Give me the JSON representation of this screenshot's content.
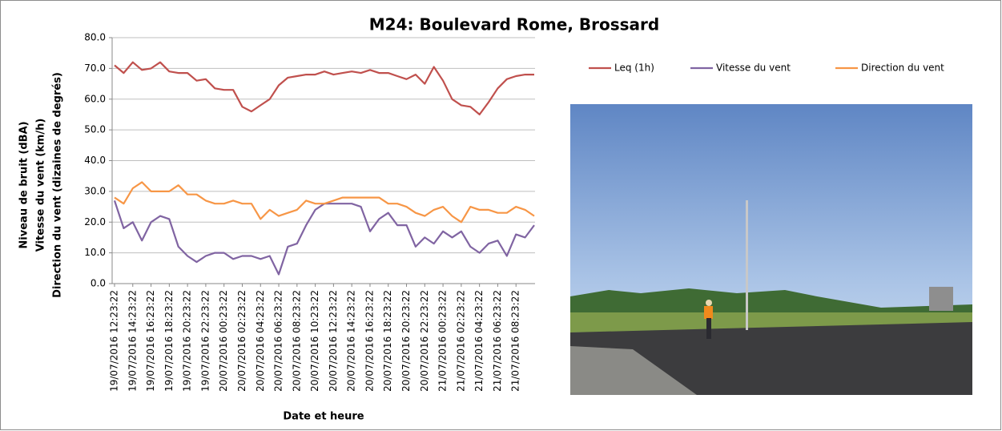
{
  "chart_data": {
    "type": "line",
    "title": "M24: Boulevard Rome, Brossard",
    "ylabel": [
      "Niveau de bruit (dBA)",
      "Vitesse du vent (km/h)",
      "Direction du vent (dizaines de degrés)"
    ],
    "xlabel": "Date et heure",
    "categories": [
      "19/07/2016 12:23:22",
      null,
      "19/07/2016 14:23:22",
      null,
      "19/07/2016 16:23:22",
      null,
      "19/07/2016 18:23:22",
      null,
      "19/07/2016 20:23:22",
      null,
      "19/07/2016 22:23:22",
      null,
      "20/07/2016 00:23:22",
      null,
      "20/07/2016 02:23:22",
      null,
      "20/07/2016 04:23:22",
      null,
      "20/07/2016 06:23:22",
      null,
      "20/07/2016 08:23:22",
      null,
      "20/07/2016 10:23:22",
      null,
      "20/07/2016 12:23:22",
      null,
      "20/07/2016 14:23:22",
      null,
      "20/07/2016 16:23:22",
      null,
      "20/07/2016 18:23:22",
      null,
      "20/07/2016 20:23:22",
      null,
      "20/07/2016 22:23:22",
      null,
      "21/07/2016 00:23:22",
      null,
      "21/07/2016 02:23:22",
      null,
      "21/07/2016 04:23:22",
      null,
      "21/07/2016 06:23:22",
      null,
      "21/07/2016 08:23:22",
      null,
      null
    ],
    "series": [
      {
        "name": "Leq (1h)",
        "color": "#c0504d",
        "values": [
          71,
          68.5,
          72,
          69.5,
          70,
          72,
          69,
          68.5,
          68.5,
          66,
          66.5,
          63.5,
          63,
          63,
          57.5,
          56,
          58,
          60,
          64.5,
          67,
          67.5,
          68,
          68,
          69,
          68,
          68.5,
          69,
          68.5,
          69.5,
          68.5,
          68.5,
          67.5,
          66.5,
          68,
          65,
          70.5,
          66,
          60,
          58,
          57.5,
          55,
          59,
          63.5,
          66.5,
          67.5,
          68,
          68
        ]
      },
      {
        "name": "Vitesse du vent",
        "color": "#8064a2",
        "values": [
          27,
          18,
          20,
          14,
          20,
          22,
          21,
          12,
          9,
          7,
          9,
          10,
          10,
          8,
          9,
          9,
          8,
          9,
          3,
          12,
          13,
          19,
          24,
          26,
          26,
          26,
          26,
          25,
          17,
          21,
          23,
          19,
          19,
          12,
          15,
          13,
          17,
          15,
          17,
          12,
          10,
          13,
          14,
          9,
          16,
          15,
          19
        ]
      },
      {
        "name": "Direction du vent",
        "color": "#f79646",
        "values": [
          28,
          26,
          31,
          33,
          30,
          30,
          30,
          32,
          29,
          29,
          27,
          26,
          26,
          27,
          26,
          26,
          21,
          24,
          22,
          23,
          24,
          27,
          26,
          26,
          27,
          28,
          28,
          28,
          28,
          28,
          26,
          26,
          25,
          23,
          22,
          24,
          25,
          22,
          20,
          25,
          24,
          24,
          23,
          23,
          25,
          24,
          22
        ]
      }
    ],
    "ylim": [
      0,
      80
    ],
    "yticks": [
      {
        "value": 0,
        "label": "0.0"
      },
      {
        "value": 10,
        "label": "10.0"
      },
      {
        "value": 20,
        "label": "20.0"
      },
      {
        "value": 30,
        "label": "30.0"
      },
      {
        "value": 40,
        "label": "40.0"
      },
      {
        "value": 50,
        "label": "50.0"
      },
      {
        "value": 60,
        "label": "60.0"
      },
      {
        "value": 70,
        "label": "70.0"
      },
      {
        "value": 80,
        "label": "80.0"
      }
    ],
    "grid": true
  }
}
